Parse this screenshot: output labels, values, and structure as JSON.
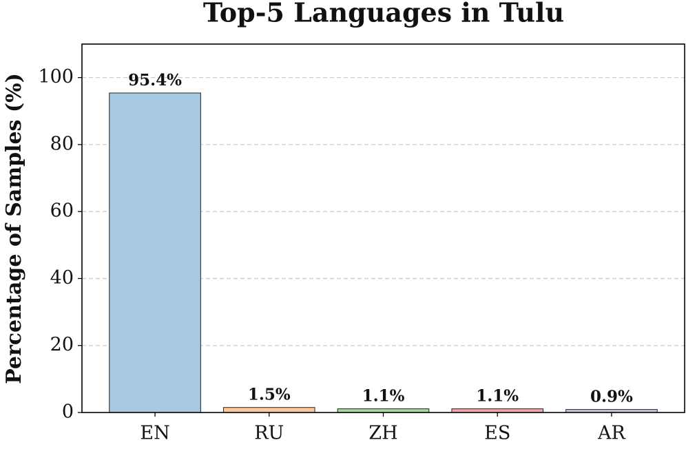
{
  "chart_data": {
    "type": "bar",
    "title": "Top-5 Languages in Tulu",
    "y_label": "Percentage of Samples (%)",
    "categories": [
      "EN",
      "RU",
      "ZH",
      "ES",
      "AR"
    ],
    "values": [
      95.4,
      1.5,
      1.1,
      1.1,
      0.9
    ],
    "value_labels": [
      "95.4%",
      "1.5%",
      "1.1%",
      "1.1%",
      "0.9%"
    ],
    "colors": [
      "#a6c8e3",
      "#fdc99a",
      "#a8d8a0",
      "#f0a6a4",
      "#cbc1e1"
    ],
    "ylim": [
      0,
      110
    ],
    "yticks": [
      0,
      20,
      40,
      60,
      80,
      100
    ],
    "grid": true
  }
}
